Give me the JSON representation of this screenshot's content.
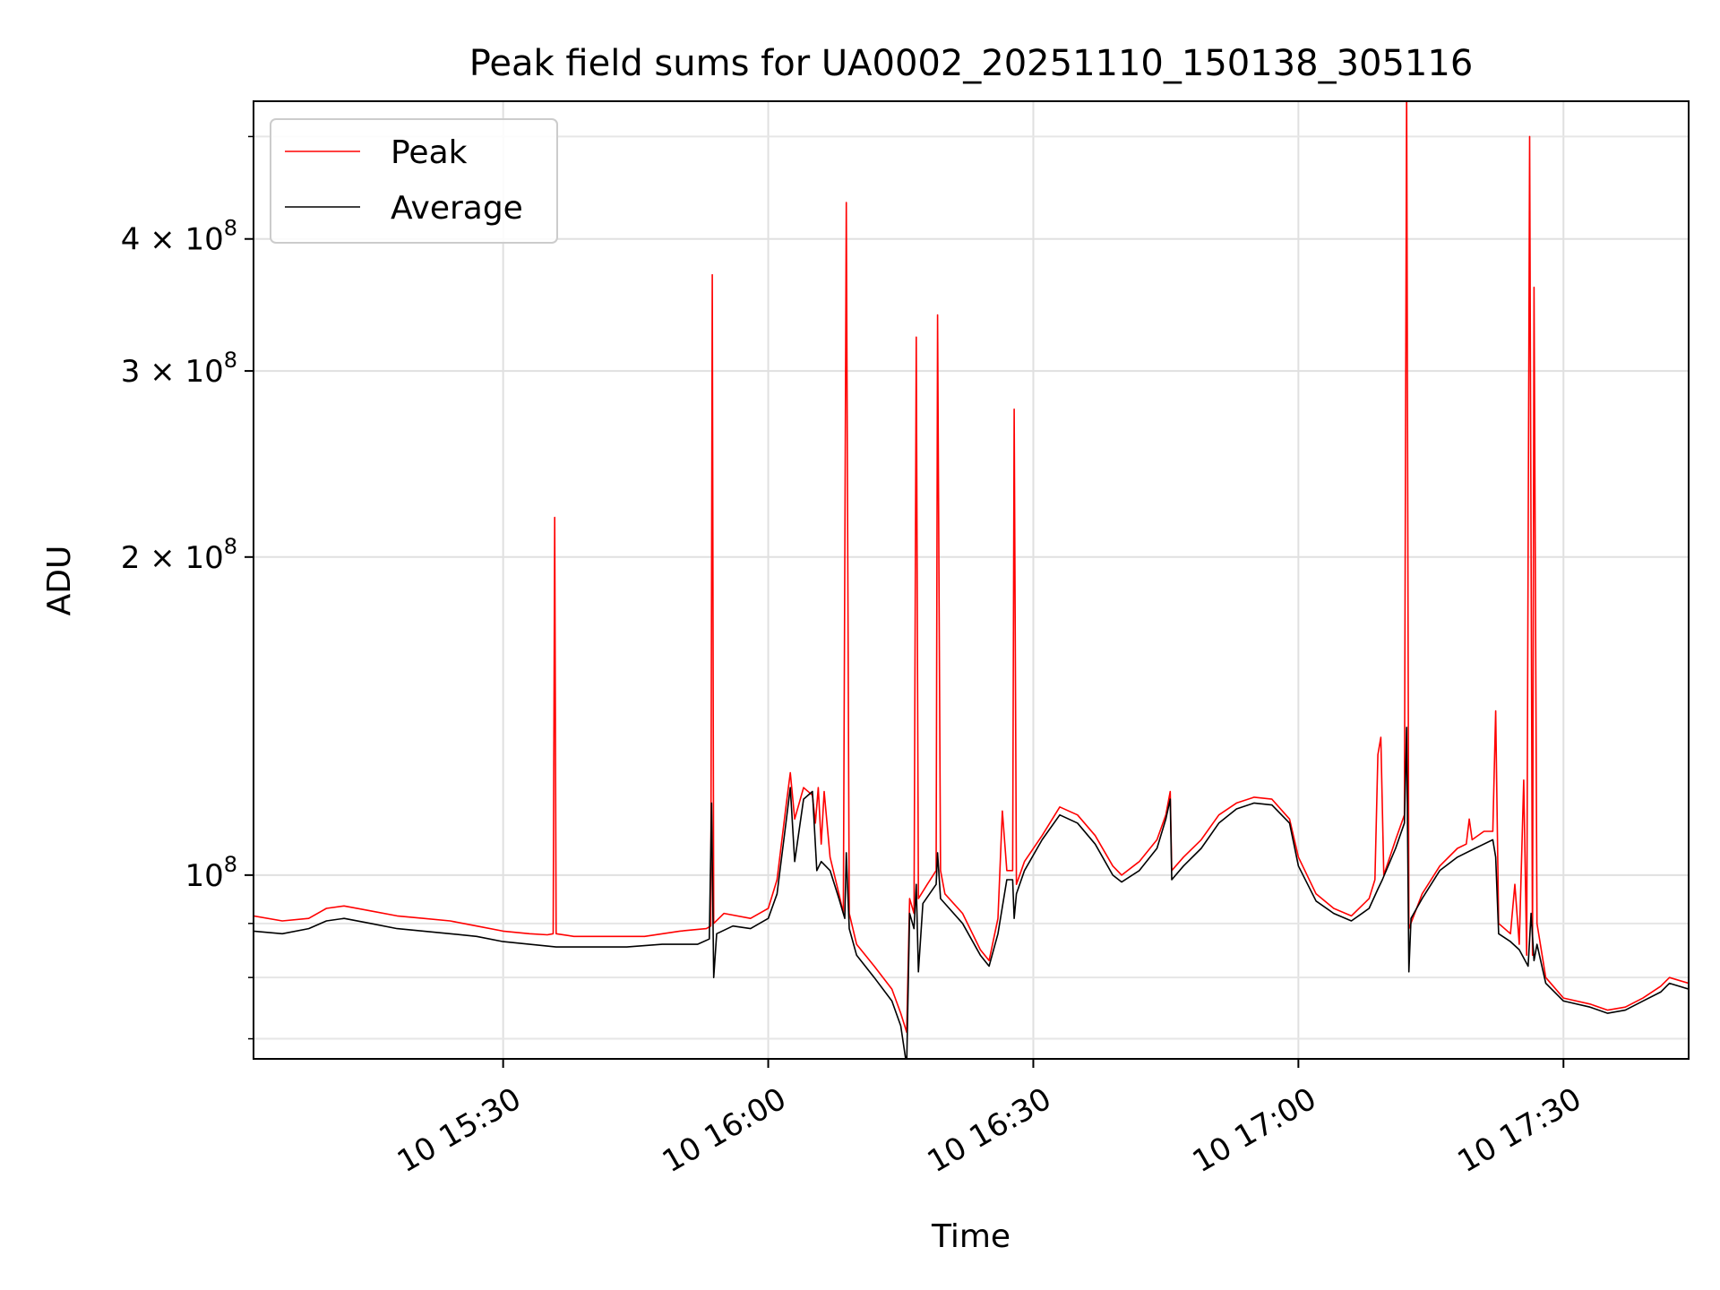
{
  "chart_data": {
    "type": "line",
    "title": "Peak field sums for UA0002_20251110_150138_305116",
    "xlabel": "Time",
    "ylabel": "ADU",
    "y_scale": "log",
    "ylim": [
      67000000,
      540000000
    ],
    "xlim": [
      "2025-11-10 15:01:45",
      "2025-11-10 17:44:10"
    ],
    "x_ticks": [
      {
        "time": "2025-11-10 15:30",
        "label": "10 15:30"
      },
      {
        "time": "2025-11-10 16:00",
        "label": "10 16:00"
      },
      {
        "time": "2025-11-10 16:30",
        "label": "10 16:30"
      },
      {
        "time": "2025-11-10 17:00",
        "label": "10 17:00"
      },
      {
        "time": "2025-11-10 17:30",
        "label": "10 17:30"
      }
    ],
    "y_ticks": [
      {
        "value": 100000000,
        "mantissa": "",
        "exponent": "8"
      },
      {
        "value": 200000000,
        "mantissa": "2",
        "exponent": "8"
      },
      {
        "value": 300000000,
        "mantissa": "3",
        "exponent": "8"
      },
      {
        "value": 400000000,
        "mantissa": "4",
        "exponent": "8"
      }
    ],
    "grid": true,
    "legend_position": "top-left",
    "series": [
      {
        "name": "Peak",
        "color": "#ff0000",
        "points": [
          [
            "15:01:45",
            91.5
          ],
          [
            "15:05",
            90.5
          ],
          [
            "15:08",
            91
          ],
          [
            "15:10",
            93
          ],
          [
            "15:12",
            93.5
          ],
          [
            "15:15",
            92.5
          ],
          [
            "15:18",
            91.5
          ],
          [
            "15:21",
            91
          ],
          [
            "15:24",
            90.5
          ],
          [
            "15:27",
            89.5
          ],
          [
            "15:30",
            88.5
          ],
          [
            "15:33",
            88
          ],
          [
            "15:35",
            87.8
          ],
          [
            "15:35:40",
            88
          ],
          [
            "15:35:50",
            218
          ],
          [
            "15:36:00",
            88
          ],
          [
            "15:38",
            87.5
          ],
          [
            "15:42",
            87.5
          ],
          [
            "15:46",
            87.5
          ],
          [
            "15:50",
            88.5
          ],
          [
            "15:53",
            89
          ],
          [
            "15:53:30",
            89.5
          ],
          [
            "15:53:40",
            370
          ],
          [
            "15:53:50",
            90
          ],
          [
            "15:55",
            92
          ],
          [
            "15:58",
            91
          ],
          [
            "16:00",
            93
          ],
          [
            "16:01",
            99
          ],
          [
            "16:02",
            116
          ],
          [
            "16:02:30",
            125
          ],
          [
            "16:03",
            113
          ],
          [
            "16:04",
            121
          ],
          [
            "16:05",
            119
          ],
          [
            "16:05:20",
            112
          ],
          [
            "16:05:40",
            121
          ],
          [
            "16:06",
            107
          ],
          [
            "16:06:20",
            120
          ],
          [
            "16:07",
            104
          ],
          [
            "16:08",
            96
          ],
          [
            "16:08:30",
            92
          ],
          [
            "16:08:50",
            433
          ],
          [
            "16:09:10",
            92
          ],
          [
            "16:10",
            86
          ],
          [
            "16:12",
            82
          ],
          [
            "16:14",
            78
          ],
          [
            "16:15",
            74
          ],
          [
            "16:15:40",
            71
          ],
          [
            "16:16",
            95
          ],
          [
            "16:16:30",
            92
          ],
          [
            "16:16:45",
            323
          ],
          [
            "16:17",
            95
          ],
          [
            "16:18",
            98
          ],
          [
            "16:19",
            101
          ],
          [
            "16:19:10",
            339
          ],
          [
            "16:19:30",
            101
          ],
          [
            "16:20",
            96
          ],
          [
            "16:22",
            92
          ],
          [
            "16:24",
            85
          ],
          [
            "16:25",
            83
          ],
          [
            "16:26",
            91
          ],
          [
            "16:26:30",
            115
          ],
          [
            "16:27",
            101
          ],
          [
            "16:27:40",
            101
          ],
          [
            "16:27:50",
            276
          ],
          [
            "16:28:05",
            98
          ],
          [
            "16:29",
            103
          ],
          [
            "16:31",
            109
          ],
          [
            "16:33",
            116
          ],
          [
            "16:35",
            114
          ],
          [
            "16:37",
            109
          ],
          [
            "16:39",
            102
          ],
          [
            "16:40",
            100
          ],
          [
            "16:42",
            103
          ],
          [
            "16:44",
            108
          ],
          [
            "16:45",
            114
          ],
          [
            "16:45:30",
            120
          ],
          [
            "16:45:40",
            101
          ],
          [
            "16:47",
            104
          ],
          [
            "16:49",
            108
          ],
          [
            "16:51",
            114
          ],
          [
            "16:53",
            117
          ],
          [
            "16:55",
            118.5
          ],
          [
            "16:57",
            118
          ],
          [
            "16:59",
            113
          ],
          [
            "17:00",
            104
          ],
          [
            "17:02",
            96
          ],
          [
            "17:04",
            93
          ],
          [
            "17:06",
            91.5
          ],
          [
            "17:08",
            95
          ],
          [
            "17:08:40",
            99
          ],
          [
            "17:09",
            130
          ],
          [
            "17:09:20",
            135
          ],
          [
            "17:09:40",
            100
          ],
          [
            "17:11",
            108
          ],
          [
            "17:12",
            114
          ],
          [
            "17:12:15",
            560
          ],
          [
            "17:12:30",
            89
          ],
          [
            "17:14",
            96
          ],
          [
            "17:16",
            102
          ],
          [
            "17:18",
            106
          ],
          [
            "17:19",
            107
          ],
          [
            "17:19:20",
            113
          ],
          [
            "17:19:40",
            108
          ],
          [
            "17:21",
            110
          ],
          [
            "17:22",
            110
          ],
          [
            "17:22:20",
            143
          ],
          [
            "17:22:40",
            90
          ],
          [
            "17:24",
            88
          ],
          [
            "17:24:30",
            98
          ],
          [
            "17:25",
            86
          ],
          [
            "17:25:30",
            123
          ],
          [
            "17:25:50",
            84
          ],
          [
            "17:26:10",
            500
          ],
          [
            "17:26:30",
            84
          ],
          [
            "17:26:40",
            360
          ],
          [
            "17:27",
            90
          ],
          [
            "17:28",
            80
          ],
          [
            "17:30",
            76.5
          ],
          [
            "17:33",
            75.5
          ],
          [
            "17:35",
            74.5
          ],
          [
            "17:37",
            75
          ],
          [
            "17:39",
            76.5
          ],
          [
            "17:41",
            78.5
          ],
          [
            "17:42",
            80
          ],
          [
            "17:44:10",
            79
          ]
        ]
      },
      {
        "name": "Average",
        "color": "#000000",
        "points": [
          [
            "15:01:45",
            88.5
          ],
          [
            "15:05",
            88
          ],
          [
            "15:08",
            89
          ],
          [
            "15:10",
            90.5
          ],
          [
            "15:12",
            91
          ],
          [
            "15:15",
            90
          ],
          [
            "15:18",
            89
          ],
          [
            "15:21",
            88.5
          ],
          [
            "15:24",
            88
          ],
          [
            "15:27",
            87.5
          ],
          [
            "15:30",
            86.5
          ],
          [
            "15:33",
            86
          ],
          [
            "15:36",
            85.5
          ],
          [
            "15:40",
            85.5
          ],
          [
            "15:44",
            85.5
          ],
          [
            "15:48",
            86
          ],
          [
            "15:52",
            86
          ],
          [
            "15:53:20",
            87
          ],
          [
            "15:53:35",
            117
          ],
          [
            "15:53:50",
            80
          ],
          [
            "15:54:10",
            88
          ],
          [
            "15:56",
            89.5
          ],
          [
            "15:58",
            89
          ],
          [
            "16:00",
            91
          ],
          [
            "16:01",
            96
          ],
          [
            "16:02",
            112
          ],
          [
            "16:02:30",
            121
          ],
          [
            "16:03",
            103
          ],
          [
            "16:04",
            118
          ],
          [
            "16:05",
            120
          ],
          [
            "16:05:30",
            101
          ],
          [
            "16:06",
            103
          ],
          [
            "16:07",
            101
          ],
          [
            "16:08",
            95
          ],
          [
            "16:08:40",
            91
          ],
          [
            "16:08:50",
            105
          ],
          [
            "16:09:10",
            89
          ],
          [
            "16:10",
            84
          ],
          [
            "16:12",
            80
          ],
          [
            "16:14",
            76
          ],
          [
            "16:15",
            72
          ],
          [
            "16:15:40",
            66
          ],
          [
            "16:16",
            92
          ],
          [
            "16:16:30",
            89
          ],
          [
            "16:16:45",
            98
          ],
          [
            "16:17",
            81
          ],
          [
            "16:17:30",
            94
          ],
          [
            "16:19",
            98
          ],
          [
            "16:19:10",
            105
          ],
          [
            "16:19:30",
            95
          ],
          [
            "16:20",
            94
          ],
          [
            "16:22",
            90
          ],
          [
            "16:24",
            84
          ],
          [
            "16:25",
            82
          ],
          [
            "16:26",
            88
          ],
          [
            "16:27",
            99
          ],
          [
            "16:27:40",
            99
          ],
          [
            "16:27:50",
            91
          ],
          [
            "16:28:05",
            96
          ],
          [
            "16:29",
            101
          ],
          [
            "16:31",
            108
          ],
          [
            "16:33",
            114
          ],
          [
            "16:35",
            112
          ],
          [
            "16:37",
            107
          ],
          [
            "16:39",
            100
          ],
          [
            "16:40",
            98.5
          ],
          [
            "16:42",
            101
          ],
          [
            "16:44",
            106
          ],
          [
            "16:45",
            113
          ],
          [
            "16:45:30",
            118
          ],
          [
            "16:45:40",
            99
          ],
          [
            "16:47",
            102
          ],
          [
            "16:49",
            106
          ],
          [
            "16:51",
            112
          ],
          [
            "16:53",
            115.5
          ],
          [
            "16:55",
            117
          ],
          [
            "16:57",
            116.5
          ],
          [
            "16:59",
            112
          ],
          [
            "17:00",
            102
          ],
          [
            "17:02",
            94.5
          ],
          [
            "17:04",
            92
          ],
          [
            "17:06",
            90.5
          ],
          [
            "17:08",
            93
          ],
          [
            "17:09",
            97
          ],
          [
            "17:09:30",
            99
          ],
          [
            "17:11",
            106
          ],
          [
            "17:12",
            112
          ],
          [
            "17:12:15",
            138
          ],
          [
            "17:12:30",
            81
          ],
          [
            "17:12:45",
            91
          ],
          [
            "17:14",
            95
          ],
          [
            "17:16",
            101
          ],
          [
            "17:18",
            104
          ],
          [
            "17:20",
            106
          ],
          [
            "17:22",
            108
          ],
          [
            "17:22:20",
            104
          ],
          [
            "17:22:40",
            88
          ],
          [
            "17:24",
            86.5
          ],
          [
            "17:25",
            85
          ],
          [
            "17:26",
            82
          ],
          [
            "17:26:20",
            92
          ],
          [
            "17:26:40",
            83
          ],
          [
            "17:27",
            86
          ],
          [
            "17:28",
            79
          ],
          [
            "17:30",
            76
          ],
          [
            "17:33",
            75
          ],
          [
            "17:35",
            74
          ],
          [
            "17:37",
            74.5
          ],
          [
            "17:39",
            76
          ],
          [
            "17:41",
            77.5
          ],
          [
            "17:42",
            79
          ],
          [
            "17:44:10",
            78
          ]
        ]
      }
    ]
  }
}
